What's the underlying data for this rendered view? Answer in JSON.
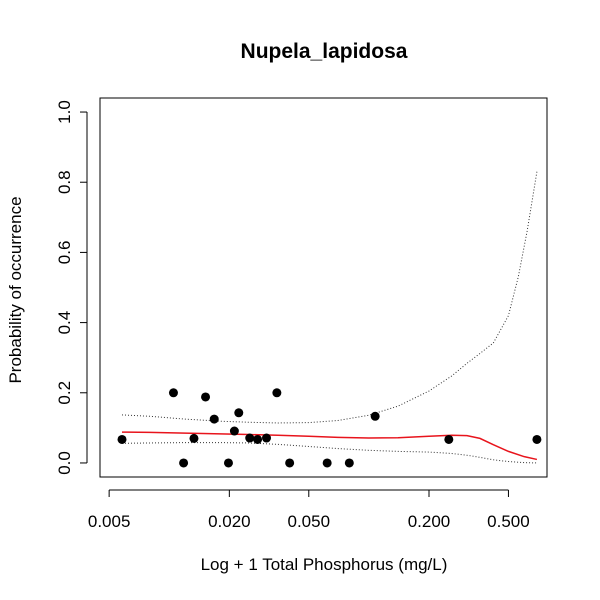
{
  "chart_data": {
    "type": "scatter",
    "title": "Nupela_lapidosa",
    "xlabel": "Log + 1 Total Phosphorus (mg/L)",
    "ylabel": "Probability of occurrence",
    "x_scale": "log",
    "xlim": [
      0.0045,
      0.78
    ],
    "ylim": [
      -0.04,
      1.04
    ],
    "x_ticks": [
      {
        "value": 0.005,
        "label": "0.005"
      },
      {
        "value": 0.02,
        "label": "0.020"
      },
      {
        "value": 0.05,
        "label": "0.050"
      },
      {
        "value": 0.2,
        "label": "0.200"
      },
      {
        "value": 0.5,
        "label": "0.500"
      }
    ],
    "y_ticks": [
      {
        "value": 0.0,
        "label": "0.0"
      },
      {
        "value": 0.2,
        "label": "0.2"
      },
      {
        "value": 0.4,
        "label": "0.4"
      },
      {
        "value": 0.6,
        "label": "0.6"
      },
      {
        "value": 0.8,
        "label": "0.8"
      },
      {
        "value": 1.0,
        "label": "1.0"
      }
    ],
    "grid": false,
    "colors": {
      "points": "#000000",
      "fit": "#e8141c",
      "ci": "#333333"
    },
    "points": [
      {
        "x": 0.0058,
        "y": 0.067
      },
      {
        "x": 0.0105,
        "y": 0.2
      },
      {
        "x": 0.0118,
        "y": 0.0
      },
      {
        "x": 0.0133,
        "y": 0.07
      },
      {
        "x": 0.0152,
        "y": 0.188
      },
      {
        "x": 0.0168,
        "y": 0.125
      },
      {
        "x": 0.0198,
        "y": 0.0
      },
      {
        "x": 0.0212,
        "y": 0.091
      },
      {
        "x": 0.0223,
        "y": 0.143
      },
      {
        "x": 0.0253,
        "y": 0.071
      },
      {
        "x": 0.0277,
        "y": 0.067
      },
      {
        "x": 0.0307,
        "y": 0.071
      },
      {
        "x": 0.0346,
        "y": 0.2
      },
      {
        "x": 0.0401,
        "y": 0.0
      },
      {
        "x": 0.0618,
        "y": 0.0
      },
      {
        "x": 0.0798,
        "y": 0.0
      },
      {
        "x": 0.1075,
        "y": 0.133
      },
      {
        "x": 0.2514,
        "y": 0.067
      },
      {
        "x": 0.6943,
        "y": 0.067
      }
    ],
    "fit_line": [
      {
        "x": 0.0058,
        "y": 0.088
      },
      {
        "x": 0.008,
        "y": 0.087
      },
      {
        "x": 0.012,
        "y": 0.085
      },
      {
        "x": 0.018,
        "y": 0.083
      },
      {
        "x": 0.025,
        "y": 0.081
      },
      {
        "x": 0.035,
        "y": 0.079
      },
      {
        "x": 0.05,
        "y": 0.076
      },
      {
        "x": 0.07,
        "y": 0.073
      },
      {
        "x": 0.1,
        "y": 0.071
      },
      {
        "x": 0.14,
        "y": 0.072
      },
      {
        "x": 0.2,
        "y": 0.076
      },
      {
        "x": 0.26,
        "y": 0.079
      },
      {
        "x": 0.31,
        "y": 0.078
      },
      {
        "x": 0.36,
        "y": 0.07
      },
      {
        "x": 0.42,
        "y": 0.052
      },
      {
        "x": 0.5,
        "y": 0.033
      },
      {
        "x": 0.6,
        "y": 0.018
      },
      {
        "x": 0.6943,
        "y": 0.01
      }
    ],
    "ci_upper": [
      {
        "x": 0.0058,
        "y": 0.137
      },
      {
        "x": 0.008,
        "y": 0.133
      },
      {
        "x": 0.012,
        "y": 0.125
      },
      {
        "x": 0.018,
        "y": 0.119
      },
      {
        "x": 0.025,
        "y": 0.116
      },
      {
        "x": 0.035,
        "y": 0.114
      },
      {
        "x": 0.05,
        "y": 0.115
      },
      {
        "x": 0.07,
        "y": 0.121
      },
      {
        "x": 0.1,
        "y": 0.136
      },
      {
        "x": 0.14,
        "y": 0.162
      },
      {
        "x": 0.2,
        "y": 0.205
      },
      {
        "x": 0.26,
        "y": 0.248
      },
      {
        "x": 0.31,
        "y": 0.284
      },
      {
        "x": 0.36,
        "y": 0.312
      },
      {
        "x": 0.42,
        "y": 0.342
      },
      {
        "x": 0.5,
        "y": 0.42
      },
      {
        "x": 0.56,
        "y": 0.53
      },
      {
        "x": 0.62,
        "y": 0.66
      },
      {
        "x": 0.6943,
        "y": 0.83
      }
    ],
    "ci_lower": [
      {
        "x": 0.0058,
        "y": 0.056
      },
      {
        "x": 0.008,
        "y": 0.057
      },
      {
        "x": 0.012,
        "y": 0.058
      },
      {
        "x": 0.018,
        "y": 0.058
      },
      {
        "x": 0.025,
        "y": 0.057
      },
      {
        "x": 0.035,
        "y": 0.053
      },
      {
        "x": 0.05,
        "y": 0.047
      },
      {
        "x": 0.07,
        "y": 0.041
      },
      {
        "x": 0.1,
        "y": 0.036
      },
      {
        "x": 0.14,
        "y": 0.033
      },
      {
        "x": 0.2,
        "y": 0.031
      },
      {
        "x": 0.26,
        "y": 0.027
      },
      {
        "x": 0.31,
        "y": 0.022
      },
      {
        "x": 0.36,
        "y": 0.016
      },
      {
        "x": 0.42,
        "y": 0.009
      },
      {
        "x": 0.5,
        "y": 0.004
      },
      {
        "x": 0.6,
        "y": 0.001
      },
      {
        "x": 0.6943,
        "y": 0.0
      }
    ]
  }
}
